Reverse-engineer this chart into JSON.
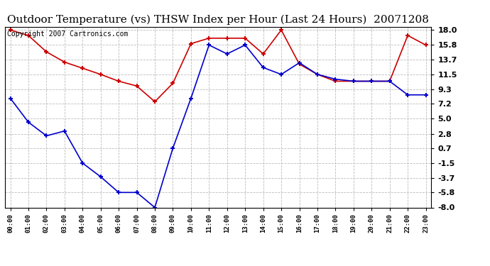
{
  "title": "Outdoor Temperature (vs) THSW Index per Hour (Last 24 Hours)  20071208",
  "copyright": "Copyright 2007 Cartronics.com",
  "hours": [
    "00:00",
    "01:00",
    "02:00",
    "03:00",
    "04:00",
    "05:00",
    "06:00",
    "07:00",
    "08:00",
    "09:00",
    "10:00",
    "11:00",
    "12:00",
    "13:00",
    "14:00",
    "15:00",
    "16:00",
    "17:00",
    "18:00",
    "19:00",
    "20:00",
    "21:00",
    "22:00",
    "23:00"
  ],
  "red_data": [
    18.0,
    17.2,
    14.8,
    13.3,
    12.4,
    11.5,
    10.5,
    9.8,
    7.5,
    10.2,
    16.0,
    16.8,
    16.8,
    16.8,
    14.5,
    18.0,
    13.0,
    11.5,
    10.5,
    10.5,
    10.5,
    10.5,
    17.2,
    15.8
  ],
  "blue_data": [
    8.0,
    4.5,
    2.5,
    3.2,
    -1.5,
    -3.5,
    -5.8,
    -5.8,
    -8.0,
    0.7,
    8.0,
    15.8,
    14.5,
    15.8,
    12.5,
    11.5,
    13.2,
    11.5,
    10.8,
    10.5,
    10.5,
    10.5,
    8.5,
    8.5
  ],
  "yticks": [
    18.0,
    15.8,
    13.7,
    11.5,
    9.3,
    7.2,
    5.0,
    2.8,
    0.7,
    -1.5,
    -3.7,
    -5.8,
    -8.0
  ],
  "ymin": -8.0,
  "ymax": 18.5,
  "red_color": "#cc0000",
  "blue_color": "#0000cc",
  "background_color": "#ffffff",
  "grid_color": "#bbbbbb",
  "title_fontsize": 11,
  "copyright_fontsize": 7
}
